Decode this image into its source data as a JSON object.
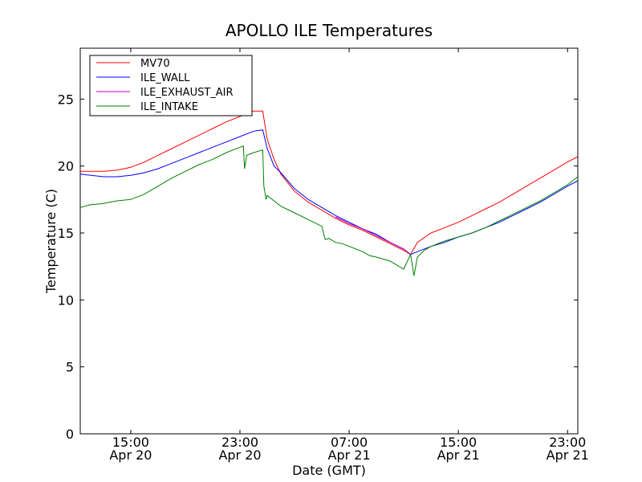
{
  "chart_data": {
    "type": "line",
    "title": "APOLLO ILE Temperatures",
    "xlabel": "Date (GMT)",
    "ylabel": "Temperature (C)",
    "xlim": [
      "2014-04-20 11:18",
      "2014-04-21 23:45"
    ],
    "ylim": [
      0,
      28.8
    ],
    "grid": false,
    "legend_position": "top-left",
    "x_ticks": [
      {
        "time": "2014-04-20 15:00",
        "line1": "15:00",
        "line2": "Apr 20"
      },
      {
        "time": "2014-04-20 23:00",
        "line1": "23:00",
        "line2": "Apr 20"
      },
      {
        "time": "2014-04-21 07:00",
        "line1": "07:00",
        "line2": "Apr 21"
      },
      {
        "time": "2014-04-21 15:00",
        "line1": "15:00",
        "line2": "Apr 21"
      },
      {
        "time": "2014-04-21 23:00",
        "line1": "23:00",
        "line2": "Apr 21"
      }
    ],
    "y_ticks": [
      0,
      5,
      10,
      15,
      20,
      25
    ],
    "series": [
      {
        "name": "MV70",
        "color": "#ff0000",
        "x": [
          "2014-04-20 11:18",
          "2014-04-20 13:00",
          "2014-04-20 14:00",
          "2014-04-20 15:00",
          "2014-04-20 16:00",
          "2014-04-20 17:00",
          "2014-04-20 18:00",
          "2014-04-20 19:00",
          "2014-04-20 20:00",
          "2014-04-20 21:00",
          "2014-04-20 22:00",
          "2014-04-20 23:00",
          "2014-04-21 00:00",
          "2014-04-21 00:40",
          "2014-04-21 01:00",
          "2014-04-21 01:30",
          "2014-04-21 02:00",
          "2014-04-21 03:00",
          "2014-04-21 04:00",
          "2014-04-21 05:00",
          "2014-04-21 06:00",
          "2014-04-21 07:00",
          "2014-04-21 08:00",
          "2014-04-21 09:00",
          "2014-04-21 10:00",
          "2014-04-21 11:00",
          "2014-04-21 11:30",
          "2014-04-21 12:00",
          "2014-04-21 13:00",
          "2014-04-21 14:00",
          "2014-04-21 15:00",
          "2014-04-21 16:00",
          "2014-04-21 17:00",
          "2014-04-21 18:00",
          "2014-04-21 19:00",
          "2014-04-21 20:00",
          "2014-04-21 21:00",
          "2014-04-21 22:00",
          "2014-04-21 23:00",
          "2014-04-21 23:45"
        ],
        "y": [
          19.6,
          19.6,
          19.7,
          19.9,
          20.3,
          20.8,
          21.3,
          21.8,
          22.3,
          22.8,
          23.3,
          23.7,
          24.1,
          24.1,
          22.0,
          20.5,
          19.4,
          18.1,
          17.3,
          16.7,
          16.1,
          15.6,
          15.2,
          14.7,
          14.2,
          13.7,
          13.4,
          14.3,
          15.0,
          15.4,
          15.8,
          16.3,
          16.8,
          17.3,
          17.9,
          18.5,
          19.1,
          19.7,
          20.3,
          20.7
        ]
      },
      {
        "name": "ILE_WALL",
        "color": "#0000ff",
        "x": [
          "2014-04-20 11:18",
          "2014-04-20 13:00",
          "2014-04-20 14:00",
          "2014-04-20 15:00",
          "2014-04-20 16:00",
          "2014-04-20 17:00",
          "2014-04-20 18:00",
          "2014-04-20 19:00",
          "2014-04-20 20:00",
          "2014-04-20 21:00",
          "2014-04-20 22:00",
          "2014-04-20 23:00",
          "2014-04-21 00:00",
          "2014-04-21 00:40",
          "2014-04-21 01:00",
          "2014-04-21 01:30",
          "2014-04-21 02:00",
          "2014-04-21 03:00",
          "2014-04-21 04:00",
          "2014-04-21 05:00",
          "2014-04-21 06:00",
          "2014-04-21 07:00",
          "2014-04-21 08:00",
          "2014-04-21 09:00",
          "2014-04-21 10:00",
          "2014-04-21 11:00",
          "2014-04-21 11:30",
          "2014-04-21 12:00",
          "2014-04-21 13:00",
          "2014-04-21 14:00",
          "2014-04-21 15:00",
          "2014-04-21 16:00",
          "2014-04-21 17:00",
          "2014-04-21 18:00",
          "2014-04-21 19:00",
          "2014-04-21 20:00",
          "2014-04-21 21:00",
          "2014-04-21 22:00",
          "2014-04-21 23:00",
          "2014-04-21 23:45"
        ],
        "y": [
          19.4,
          19.2,
          19.2,
          19.3,
          19.5,
          19.8,
          20.2,
          20.6,
          21.0,
          21.4,
          21.8,
          22.2,
          22.6,
          22.7,
          21.3,
          20.0,
          19.5,
          18.3,
          17.5,
          16.9,
          16.3,
          15.8,
          15.3,
          14.9,
          14.3,
          13.8,
          13.4,
          13.6,
          14.0,
          14.3,
          14.7,
          15.0,
          15.4,
          15.8,
          16.3,
          16.8,
          17.3,
          17.9,
          18.5,
          18.9
        ]
      },
      {
        "name": "ILE_EXHAUST_AIR",
        "color": "#bf00bf",
        "x": [
          "2014-04-21 06:00",
          "2014-04-21 07:00",
          "2014-04-21 08:00",
          "2014-04-21 09:00",
          "2014-04-21 10:00",
          "2014-04-21 11:00",
          "2014-04-21 11:30"
        ],
        "y": [
          16.2,
          15.7,
          15.3,
          14.8,
          14.3,
          13.8,
          13.4
        ]
      },
      {
        "name": "ILE_INTAKE",
        "color": "#008000",
        "x": [
          "2014-04-20 11:18",
          "2014-04-20 12:00",
          "2014-04-20 13:00",
          "2014-04-20 14:00",
          "2014-04-20 15:00",
          "2014-04-20 16:00",
          "2014-04-20 17:00",
          "2014-04-20 18:00",
          "2014-04-20 19:00",
          "2014-04-20 20:00",
          "2014-04-20 21:00",
          "2014-04-20 22:00",
          "2014-04-20 23:00",
          "2014-04-20 23:15",
          "2014-04-20 23:20",
          "2014-04-20 23:30",
          "2014-04-21 00:00",
          "2014-04-21 00:40",
          "2014-04-21 00:45",
          "2014-04-21 00:55",
          "2014-04-21 01:00",
          "2014-04-21 02:00",
          "2014-04-21 03:00",
          "2014-04-21 04:00",
          "2014-04-21 05:00",
          "2014-04-21 05:15",
          "2014-04-21 05:30",
          "2014-04-21 06:00",
          "2014-04-21 06:30",
          "2014-04-21 07:00",
          "2014-04-21 08:00",
          "2014-04-21 08:30",
          "2014-04-21 09:00",
          "2014-04-21 10:00",
          "2014-04-21 11:00",
          "2014-04-21 11:30",
          "2014-04-21 11:45",
          "2014-04-21 12:00",
          "2014-04-21 12:30",
          "2014-04-21 13:00",
          "2014-04-21 14:00",
          "2014-04-21 15:00",
          "2014-04-21 16:00",
          "2014-04-21 17:00",
          "2014-04-21 18:00",
          "2014-04-21 19:00",
          "2014-04-21 20:00",
          "2014-04-21 21:00",
          "2014-04-21 22:00",
          "2014-04-21 23:00",
          "2014-04-21 23:45"
        ],
        "y": [
          16.9,
          17.1,
          17.2,
          17.4,
          17.5,
          17.9,
          18.5,
          19.1,
          19.6,
          20.1,
          20.5,
          21.0,
          21.4,
          21.5,
          19.8,
          20.8,
          21.0,
          21.2,
          18.5,
          17.5,
          17.8,
          17.0,
          16.5,
          16.0,
          15.5,
          14.5,
          14.6,
          14.3,
          14.2,
          14.0,
          13.6,
          13.3,
          13.2,
          12.9,
          12.3,
          13.4,
          11.8,
          13.2,
          13.7,
          14.0,
          14.4,
          14.7,
          15.0,
          15.4,
          15.9,
          16.4,
          16.9,
          17.4,
          18.0,
          18.6,
          19.2
        ]
      }
    ]
  }
}
